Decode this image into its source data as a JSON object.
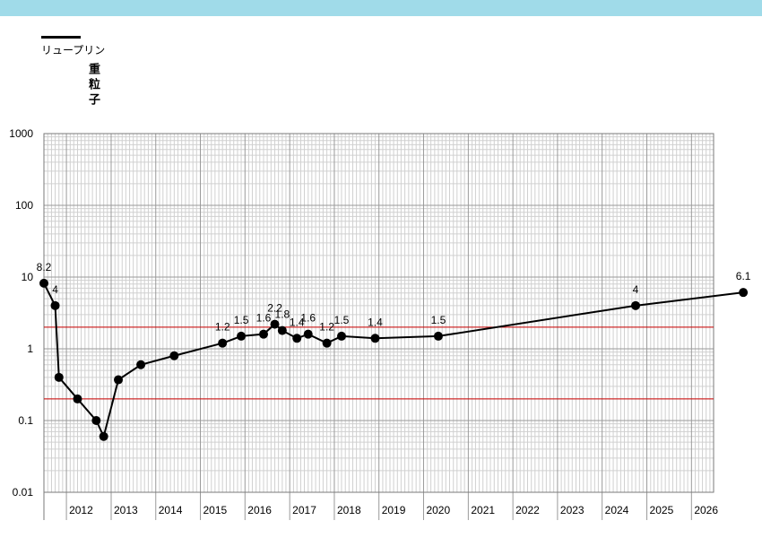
{
  "colors": {
    "top_band": "#a0dbe9",
    "series": "#000000",
    "threshold": "#cc0000",
    "grid_major": "#9a9a9a",
    "grid_minor": "#d0d0d0"
  },
  "chart_data": {
    "type": "line",
    "title": "",
    "xlabel": "",
    "ylabel": "重粒子",
    "y_scale": "log",
    "ylim": [
      0.01,
      1000
    ],
    "y_ticks": [
      0.01,
      0.1,
      1,
      10,
      100,
      1000
    ],
    "y_tick_labels": [
      "0.01",
      "0.1",
      "1",
      "10",
      "100",
      "1000"
    ],
    "xlim": [
      "2011-07-01",
      "2026-07-01"
    ],
    "x_tick_labels": [
      "2012",
      "2013",
      "2014",
      "2015",
      "2016",
      "2017",
      "2018",
      "2019",
      "2020",
      "2021",
      "2022",
      "2023",
      "2024",
      "2025",
      "2026"
    ],
    "grid": true,
    "legend": {
      "position": "top-left",
      "entries": [
        "リュープリン"
      ]
    },
    "reference_lines": [
      2,
      0.2
    ],
    "series": [
      {
        "name": "リュープリン",
        "points": [
          {
            "x": "2011-07-01",
            "y": 8.2,
            "label": "8.2"
          },
          {
            "x": "2011-10-01",
            "y": 4,
            "label": "4"
          },
          {
            "x": "2011-11-01",
            "y": 0.4,
            "label": ""
          },
          {
            "x": "2012-04-01",
            "y": 0.2,
            "label": ""
          },
          {
            "x": "2012-09-01",
            "y": 0.1,
            "label": ""
          },
          {
            "x": "2012-11-01",
            "y": 0.06,
            "label": ""
          },
          {
            "x": "2013-03-01",
            "y": 0.37,
            "label": ""
          },
          {
            "x": "2013-09-01",
            "y": 0.6,
            "label": ""
          },
          {
            "x": "2014-06-01",
            "y": 0.8,
            "label": ""
          },
          {
            "x": "2015-07-01",
            "y": 1.2,
            "label": "1.2"
          },
          {
            "x": "2015-12-01",
            "y": 1.5,
            "label": "1.5"
          },
          {
            "x": "2016-06-01",
            "y": 1.6,
            "label": "1.6"
          },
          {
            "x": "2016-09-01",
            "y": 2.2,
            "label": "2.2"
          },
          {
            "x": "2016-11-01",
            "y": 1.8,
            "label": "1.8"
          },
          {
            "x": "2017-03-01",
            "y": 1.4,
            "label": "1.4"
          },
          {
            "x": "2017-06-01",
            "y": 1.6,
            "label": "1.6"
          },
          {
            "x": "2017-11-01",
            "y": 1.2,
            "label": "1.2"
          },
          {
            "x": "2018-03-01",
            "y": 1.5,
            "label": "1.5"
          },
          {
            "x": "2018-12-01",
            "y": 1.4,
            "label": "1.4"
          },
          {
            "x": "2020-05-01",
            "y": 1.5,
            "label": "1.5"
          },
          {
            "x": "2024-10-01",
            "y": 4,
            "label": "4"
          },
          {
            "x": "2027-03-01",
            "y": 6.1,
            "label": "6.1"
          }
        ]
      }
    ]
  }
}
